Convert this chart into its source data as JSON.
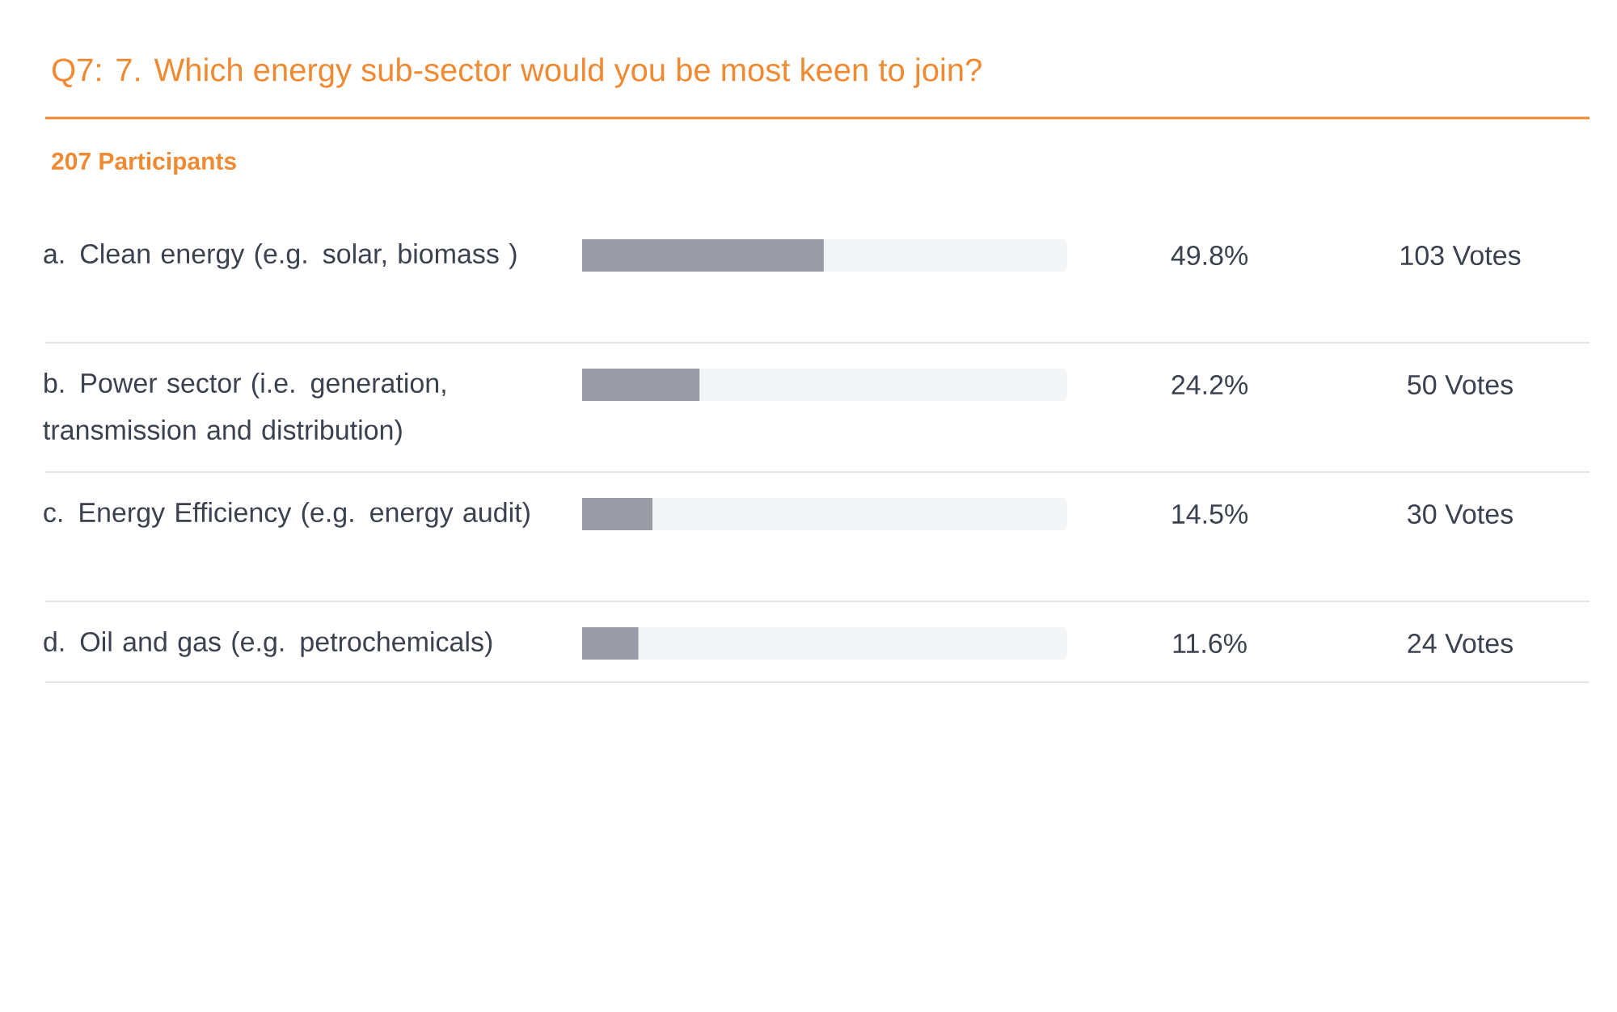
{
  "chart_data": {
    "type": "bar",
    "orientation": "horizontal",
    "title": "Q7: 7. Which energy sub-sector would you be most keen to join?",
    "subtitle": "207 Participants",
    "categories": [
      "a. Clean energy (e.g. solar, biomass )",
      "b. Power sector (i.e. generation, transmission and distribution)",
      "c. Energy Efficiency (e.g. energy audit)",
      "d. Oil and gas (e.g. petrochemicals)"
    ],
    "values": [
      49.8,
      24.2,
      14.5,
      11.6
    ],
    "value_labels": [
      "49.8%",
      "24.2%",
      "14.5%",
      "11.6%"
    ],
    "annotations": [
      "103 Votes",
      "50 Votes",
      "30 Votes",
      "24 Votes"
    ],
    "color": "#9a9ca5",
    "xlim": [
      0,
      100
    ],
    "tick_labels": "y"
  }
}
